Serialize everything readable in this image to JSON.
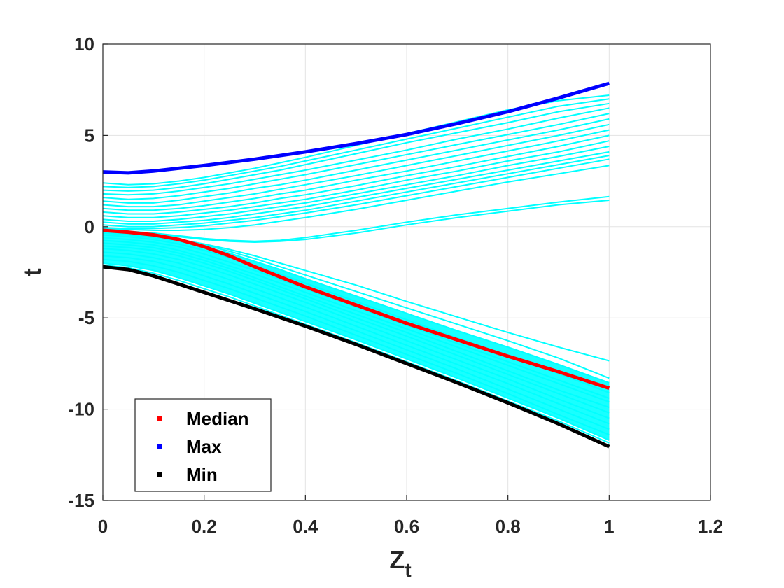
{
  "chart_data": {
    "type": "line",
    "title": "",
    "xlabel": "Z",
    "xlabel_subscript": "t",
    "ylabel": "t",
    "xlim": [
      0,
      1.2
    ],
    "ylim": [
      -15,
      10
    ],
    "xticks": [
      "0",
      "0.2",
      "0.4",
      "0.6",
      "0.8",
      "1",
      "1.2"
    ],
    "yticks": [
      "10",
      "5",
      "0",
      "-5",
      "-10",
      "-15"
    ],
    "grid": true,
    "legend_position": "bottom-left",
    "legend": [
      {
        "key": "median",
        "label": "Median",
        "color": "#ff0000"
      },
      {
        "key": "max",
        "label": "Max",
        "color": "#0000ff"
      },
      {
        "key": "min",
        "label": "Min",
        "color": "#000000"
      }
    ],
    "bundle_color": "#00ffff",
    "series": [
      {
        "name": "Max",
        "color": "#0000ff",
        "x": [
          0,
          0.05,
          0.1,
          0.2,
          0.3,
          0.4,
          0.5,
          0.6,
          0.7,
          0.8,
          0.9,
          1.0
        ],
        "y": [
          3.0,
          2.95,
          3.05,
          3.35,
          3.7,
          4.1,
          4.55,
          5.05,
          5.65,
          6.3,
          7.05,
          7.85
        ]
      },
      {
        "name": "Median",
        "color": "#ff0000",
        "x": [
          0,
          0.05,
          0.1,
          0.15,
          0.2,
          0.25,
          0.3,
          0.4,
          0.5,
          0.6,
          0.7,
          0.8,
          0.9,
          1.0
        ],
        "y": [
          -0.2,
          -0.3,
          -0.45,
          -0.7,
          -1.1,
          -1.6,
          -2.2,
          -3.3,
          -4.3,
          -5.3,
          -6.2,
          -7.1,
          -7.95,
          -8.85
        ]
      },
      {
        "name": "Min",
        "color": "#000000",
        "x": [
          0,
          0.05,
          0.1,
          0.2,
          0.3,
          0.4,
          0.5,
          0.6,
          0.7,
          0.8,
          0.9,
          1.0
        ],
        "y": [
          -2.2,
          -2.35,
          -2.7,
          -3.6,
          -4.5,
          -5.45,
          -6.45,
          -7.5,
          -8.55,
          -9.65,
          -10.8,
          -12.05
        ]
      }
    ],
    "bundle": {
      "x": [
        0,
        0.05,
        0.1,
        0.15,
        0.2,
        0.25,
        0.3,
        0.35,
        0.4,
        0.5,
        0.6,
        0.7,
        0.8,
        0.9,
        1.0
      ],
      "lines": [
        {
          "y": [
            2.4,
            2.3,
            2.35,
            2.5,
            2.7,
            2.95,
            3.2,
            3.5,
            3.8,
            4.45,
            5.1,
            5.75,
            6.4,
            6.9,
            7.2
          ]
        },
        {
          "y": [
            2.2,
            2.15,
            2.2,
            2.35,
            2.55,
            2.8,
            3.05,
            3.3,
            3.6,
            4.2,
            4.8,
            5.4,
            6.0,
            6.6,
            7.0
          ]
        },
        {
          "y": [
            2.0,
            1.95,
            2.0,
            2.15,
            2.35,
            2.6,
            2.85,
            3.1,
            3.4,
            4.0,
            4.6,
            5.15,
            5.7,
            6.3,
            6.75
          ]
        },
        {
          "y": [
            1.8,
            1.75,
            1.8,
            1.95,
            2.15,
            2.35,
            2.6,
            2.85,
            3.1,
            3.65,
            4.2,
            4.8,
            5.35,
            5.95,
            6.5
          ]
        },
        {
          "y": [
            1.6,
            1.5,
            1.55,
            1.7,
            1.9,
            2.1,
            2.35,
            2.6,
            2.85,
            3.4,
            3.95,
            4.5,
            5.05,
            5.6,
            6.2
          ]
        },
        {
          "y": [
            1.4,
            1.3,
            1.3,
            1.45,
            1.65,
            1.85,
            2.1,
            2.3,
            2.55,
            3.1,
            3.65,
            4.2,
            4.75,
            5.3,
            5.9
          ]
        },
        {
          "y": [
            1.2,
            1.1,
            1.1,
            1.2,
            1.4,
            1.6,
            1.8,
            2.05,
            2.3,
            2.8,
            3.35,
            3.9,
            4.45,
            5.0,
            5.6
          ]
        },
        {
          "y": [
            1.0,
            0.9,
            0.9,
            1.0,
            1.15,
            1.35,
            1.55,
            1.8,
            2.0,
            2.55,
            3.05,
            3.6,
            4.15,
            4.7,
            5.3
          ]
        },
        {
          "y": [
            0.8,
            0.7,
            0.7,
            0.8,
            0.95,
            1.1,
            1.3,
            1.55,
            1.75,
            2.25,
            2.8,
            3.3,
            3.85,
            4.4,
            5.0
          ]
        },
        {
          "y": [
            0.6,
            0.5,
            0.5,
            0.6,
            0.75,
            0.9,
            1.1,
            1.3,
            1.5,
            2.0,
            2.55,
            3.05,
            3.6,
            4.1,
            4.7
          ]
        },
        {
          "y": [
            0.4,
            0.3,
            0.3,
            0.4,
            0.55,
            0.7,
            0.9,
            1.1,
            1.3,
            1.8,
            2.3,
            2.8,
            3.35,
            3.85,
            4.4
          ]
        },
        {
          "y": [
            0.25,
            0.15,
            0.15,
            0.25,
            0.35,
            0.5,
            0.7,
            0.9,
            1.1,
            1.6,
            2.1,
            2.6,
            3.1,
            3.6,
            4.1
          ]
        },
        {
          "y": [
            0.1,
            0.0,
            0.0,
            0.1,
            0.2,
            0.35,
            0.5,
            0.7,
            0.9,
            1.4,
            1.9,
            2.4,
            2.9,
            3.4,
            3.9
          ]
        },
        {
          "y": [
            -0.05,
            -0.1,
            -0.1,
            -0.05,
            0.05,
            0.2,
            0.35,
            0.55,
            0.75,
            1.2,
            1.7,
            2.2,
            2.7,
            3.2,
            3.7
          ]
        },
        {
          "y": [
            -0.1,
            -0.15,
            -0.2,
            -0.2,
            -0.15,
            -0.05,
            0.1,
            0.3,
            0.5,
            0.95,
            1.45,
            1.95,
            2.45,
            2.9,
            3.35
          ]
        },
        {
          "y": [
            -0.15,
            -0.25,
            -0.35,
            -0.5,
            -0.65,
            -0.75,
            -0.8,
            -0.75,
            -0.6,
            -0.2,
            0.25,
            0.65,
            1.0,
            1.35,
            1.65
          ]
        },
        {
          "y": [
            -0.2,
            -0.3,
            -0.4,
            -0.55,
            -0.7,
            -0.8,
            -0.85,
            -0.8,
            -0.7,
            -0.35,
            0.1,
            0.5,
            0.85,
            1.2,
            1.45
          ]
        },
        {
          "y": [
            -0.25,
            -0.35,
            -0.5,
            -0.7,
            -0.95,
            -1.25,
            -1.6,
            -2.0,
            -2.4,
            -3.2,
            -4.1,
            -4.95,
            -5.8,
            -6.6,
            -7.35
          ]
        },
        {
          "y": [
            -0.3,
            -0.4,
            -0.55,
            -0.75,
            -1.0,
            -1.35,
            -1.75,
            -2.2,
            -2.65,
            -3.55,
            -4.45,
            -5.35,
            -6.25,
            -7.2,
            -8.3
          ]
        },
        {
          "y": [
            -0.35,
            -0.45,
            -0.6,
            -0.8,
            -1.1,
            -1.45,
            -1.9,
            -2.35,
            -2.85,
            -3.8,
            -4.75,
            -5.7,
            -6.6,
            -7.55,
            -8.55
          ]
        },
        {
          "y": [
            -0.45,
            -0.55,
            -0.7,
            -0.95,
            -1.3,
            -1.7,
            -2.15,
            -2.6,
            -3.1,
            -4.1,
            -5.1,
            -6.1,
            -7.05,
            -8.05,
            -9.1
          ]
        },
        {
          "y": [
            -0.6,
            -0.7,
            -0.85,
            -1.1,
            -1.5,
            -1.95,
            -2.4,
            -2.9,
            -3.4,
            -4.4,
            -5.4,
            -6.4,
            -7.4,
            -8.4,
            -9.4
          ]
        },
        {
          "y": [
            -0.75,
            -0.85,
            -1.0,
            -1.3,
            -1.7,
            -2.15,
            -2.6,
            -3.1,
            -3.6,
            -4.6,
            -5.6,
            -6.6,
            -7.6,
            -8.6,
            -9.6
          ]
        },
        {
          "y": [
            -0.9,
            -1.0,
            -1.15,
            -1.45,
            -1.85,
            -2.3,
            -2.8,
            -3.3,
            -3.8,
            -4.8,
            -5.8,
            -6.85,
            -7.9,
            -8.95,
            -9.9
          ]
        },
        {
          "y": [
            -1.05,
            -1.15,
            -1.3,
            -1.6,
            -2.0,
            -2.45,
            -2.95,
            -3.45,
            -3.95,
            -5.0,
            -6.0,
            -7.05,
            -8.1,
            -9.15,
            -10.2
          ]
        },
        {
          "y": [
            -1.2,
            -1.3,
            -1.5,
            -1.8,
            -2.2,
            -2.65,
            -3.15,
            -3.65,
            -4.15,
            -5.2,
            -6.25,
            -7.3,
            -8.35,
            -9.45,
            -10.5
          ]
        },
        {
          "y": [
            -1.4,
            -1.5,
            -1.7,
            -2.0,
            -2.45,
            -2.9,
            -3.4,
            -3.9,
            -4.4,
            -5.45,
            -6.5,
            -7.55,
            -8.6,
            -9.7,
            -10.8
          ]
        },
        {
          "y": [
            -1.6,
            -1.7,
            -1.9,
            -2.25,
            -2.7,
            -3.15,
            -3.65,
            -4.15,
            -4.65,
            -5.7,
            -6.75,
            -7.8,
            -8.9,
            -10.0,
            -11.1
          ]
        },
        {
          "y": [
            -1.8,
            -1.9,
            -2.15,
            -2.5,
            -2.95,
            -3.4,
            -3.9,
            -4.4,
            -4.9,
            -5.95,
            -7.0,
            -8.05,
            -9.15,
            -10.3,
            -11.4
          ]
        },
        {
          "y": [
            -2.0,
            -2.15,
            -2.4,
            -2.8,
            -3.25,
            -3.7,
            -4.2,
            -4.7,
            -5.2,
            -6.2,
            -7.25,
            -8.3,
            -9.4,
            -10.5,
            -11.7
          ]
        },
        {
          "y": [
            -2.1,
            -2.25,
            -2.55,
            -2.95,
            -3.4,
            -3.85,
            -4.35,
            -4.85,
            -5.35,
            -6.35,
            -7.4,
            -8.45,
            -9.55,
            -10.65,
            -11.85
          ]
        }
      ]
    }
  }
}
